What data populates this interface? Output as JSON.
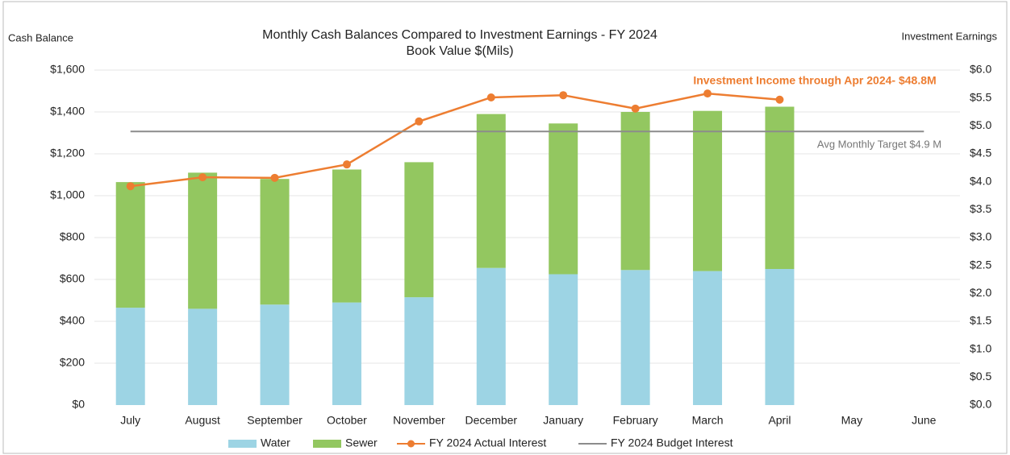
{
  "chart_data": {
    "type": "bar",
    "title": "Monthly Cash Balances Compared to Investment Earnings - FY 2024",
    "subtitle": "Book Value $(Mils)",
    "y_label": "Cash Balance",
    "y2_label": "Investment Earnings",
    "categories": [
      "July",
      "August",
      "September",
      "October",
      "November",
      "December",
      "January",
      "February",
      "March",
      "April",
      "May",
      "June"
    ],
    "stacked": true,
    "series": [
      {
        "name": "Water",
        "type": "bar",
        "color": "#9dd4e4",
        "values": [
          465,
          460,
          480,
          490,
          515,
          655,
          625,
          645,
          640,
          650,
          null,
          null
        ]
      },
      {
        "name": "Sewer",
        "type": "bar",
        "color": "#93c760",
        "values": [
          600,
          650,
          600,
          635,
          645,
          735,
          720,
          755,
          765,
          775,
          null,
          null
        ]
      },
      {
        "name": "FY 2024 Actual Interest",
        "type": "line",
        "axis": "y2",
        "color": "#ed7d31",
        "values": [
          3.92,
          4.08,
          4.07,
          4.31,
          5.08,
          5.51,
          5.55,
          5.31,
          5.58,
          5.47,
          null,
          null
        ]
      },
      {
        "name": "FY 2024 Budget Interest",
        "type": "line",
        "axis": "y2",
        "color": "#8c8c8c",
        "values": [
          4.9,
          4.9,
          4.9,
          4.9,
          4.9,
          4.9,
          4.9,
          4.9,
          4.9,
          4.9,
          4.9,
          4.9
        ]
      }
    ],
    "ylim": [
      0,
      1600
    ],
    "yticks": [
      {
        "value": 0,
        "label": "$0"
      },
      {
        "value": 200,
        "label": "$200"
      },
      {
        "value": 400,
        "label": "$400"
      },
      {
        "value": 600,
        "label": "$600"
      },
      {
        "value": 800,
        "label": "$800"
      },
      {
        "value": 1000,
        "label": "$1,000"
      },
      {
        "value": 1200,
        "label": "$1,200"
      },
      {
        "value": 1400,
        "label": "$1,400"
      },
      {
        "value": 1600,
        "label": "$1,600"
      }
    ],
    "y2lim": [
      0,
      6
    ],
    "y2ticks": [
      {
        "value": 0,
        "label": "$0.0"
      },
      {
        "value": 0.5,
        "label": "$0.5"
      },
      {
        "value": 1,
        "label": "$1.0"
      },
      {
        "value": 1.5,
        "label": "$1.5"
      },
      {
        "value": 2,
        "label": "$2.0"
      },
      {
        "value": 2.5,
        "label": "$2.5"
      },
      {
        "value": 3,
        "label": "$3.0"
      },
      {
        "value": 3.5,
        "label": "$3.5"
      },
      {
        "value": 4,
        "label": "$4.0"
      },
      {
        "value": 4.5,
        "label": "$4.5"
      },
      {
        "value": 5,
        "label": "$5.0"
      },
      {
        "value": 5.5,
        "label": "$5.5"
      },
      {
        "value": 6,
        "label": "$6.0"
      }
    ],
    "grid": true,
    "legend": "bottom",
    "annotations": [
      "Investment Income through Apr 2024- $48.8M",
      "Avg Monthly Target $4.9 M"
    ]
  }
}
